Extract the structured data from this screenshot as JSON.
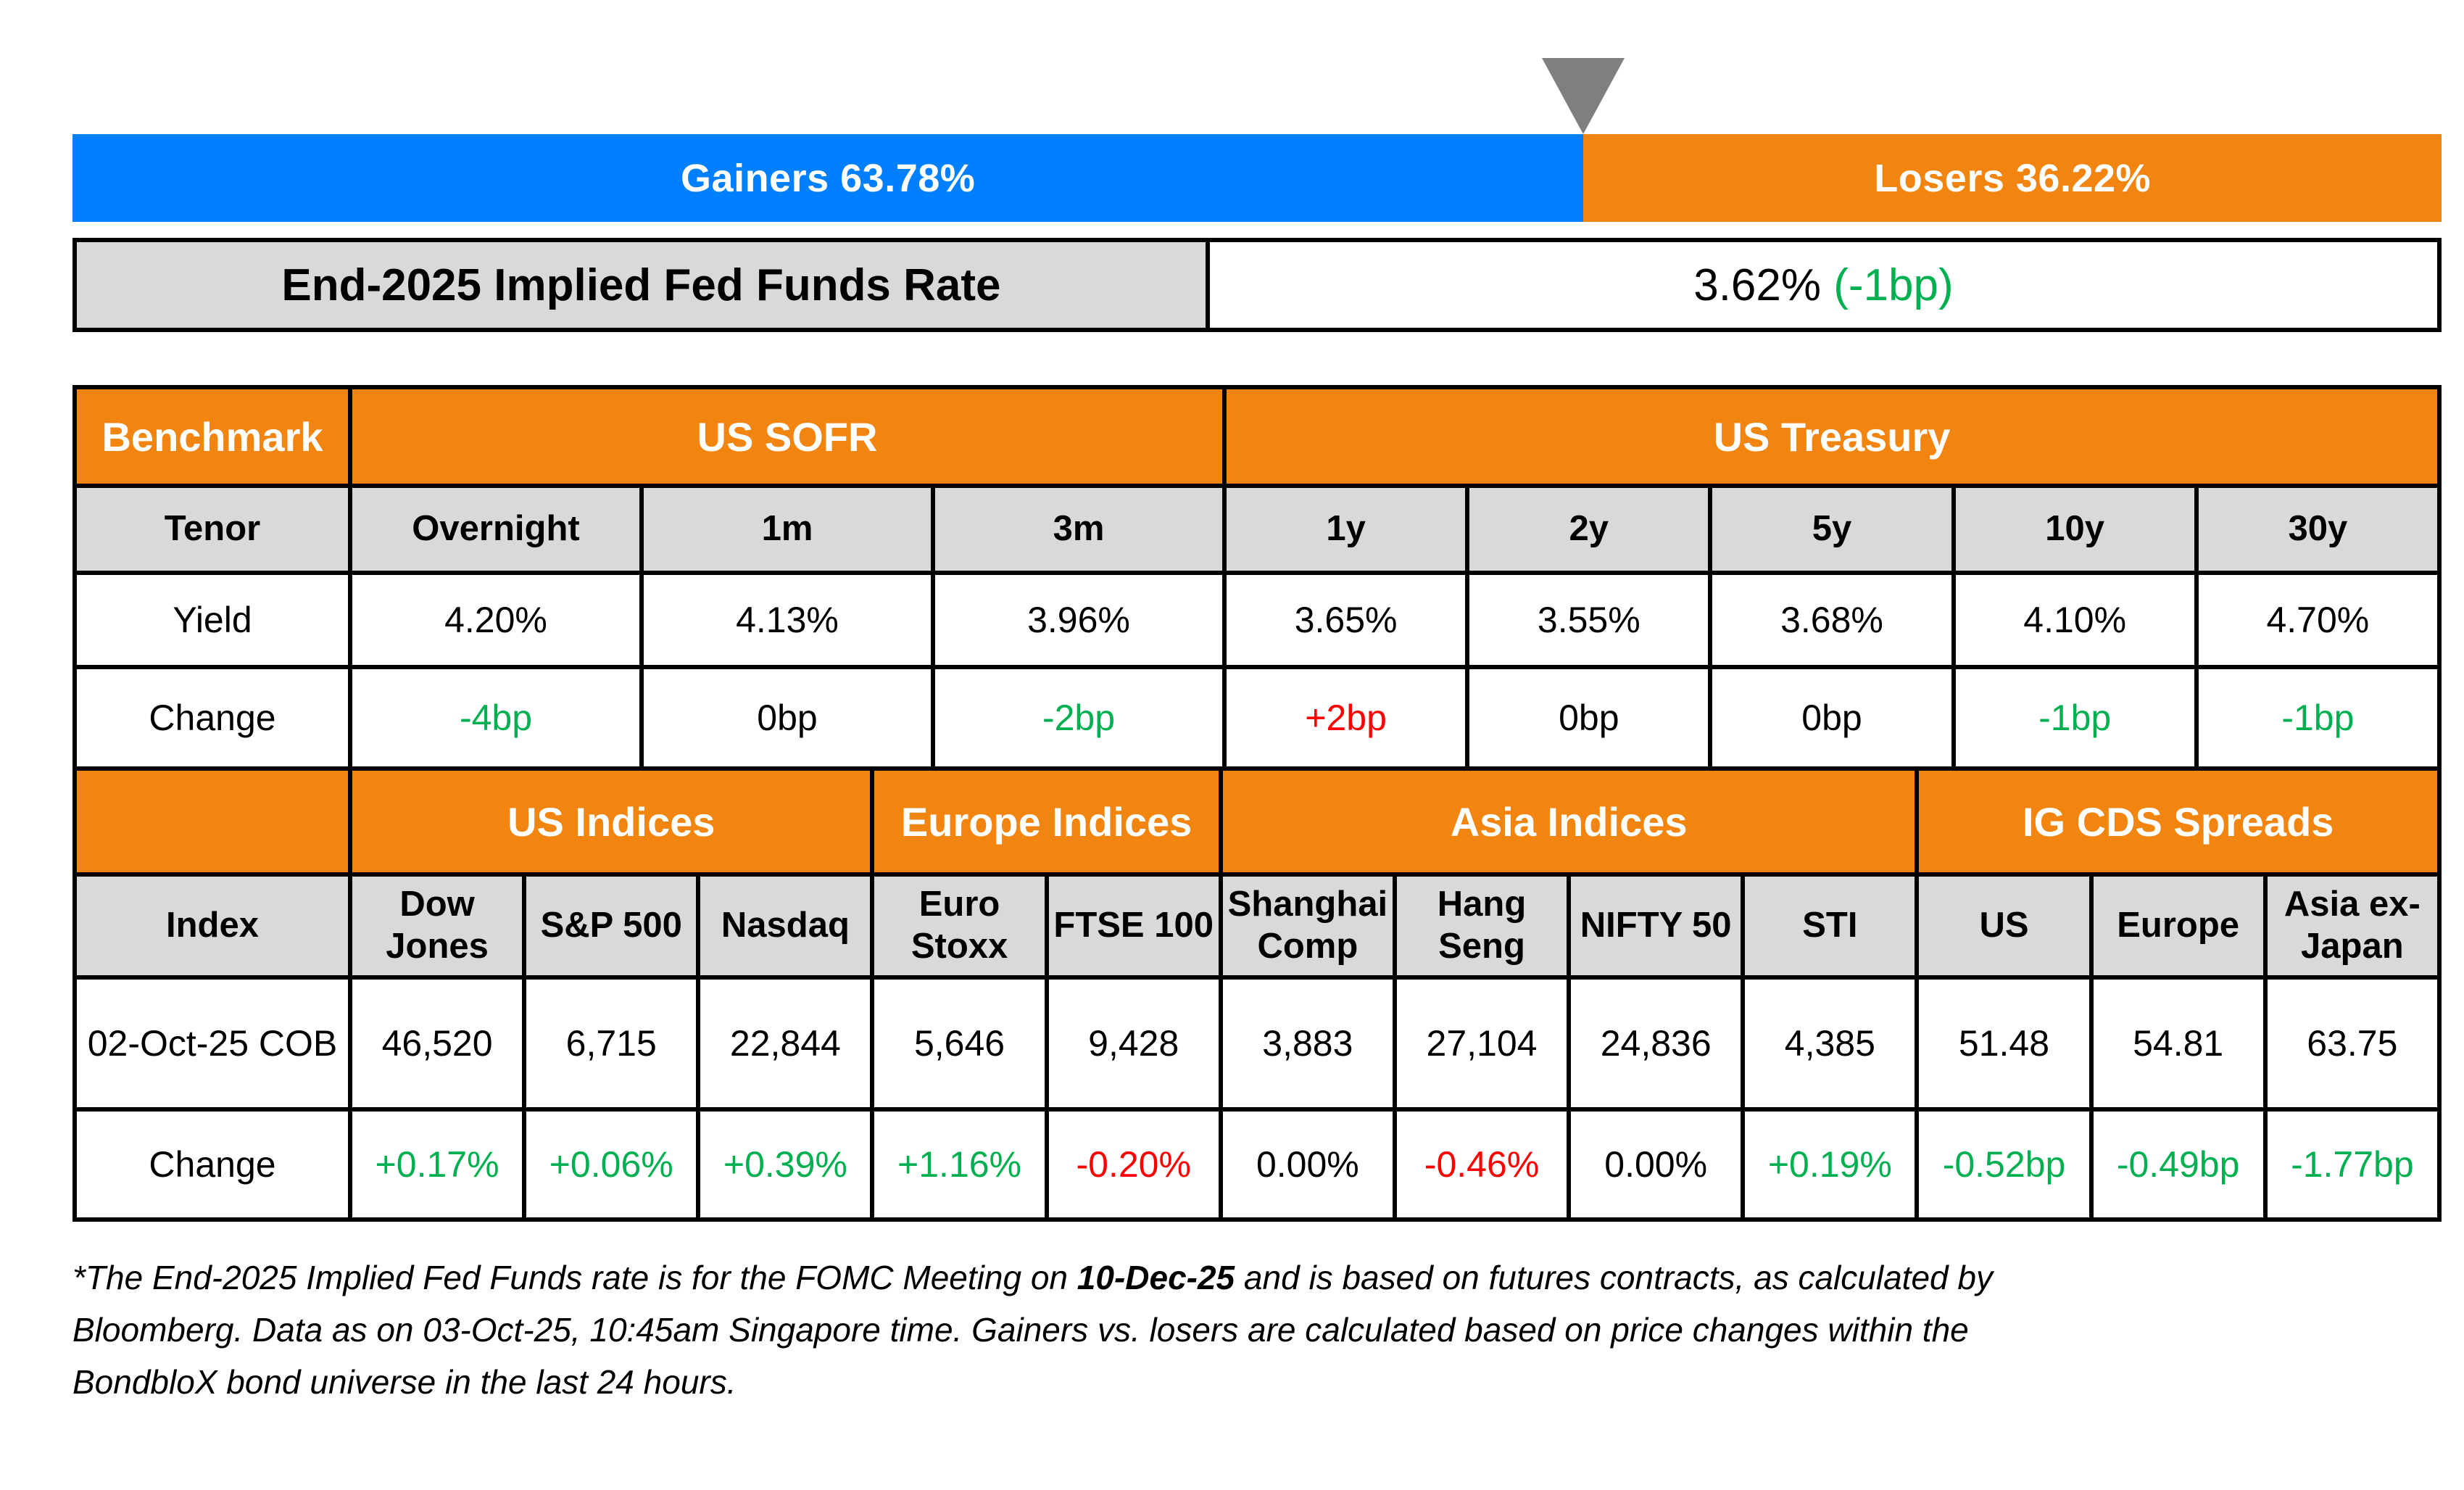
{
  "colors": {
    "gainers_blue": "#0080FE",
    "losers_orange": "#F28510",
    "header_orange": "#F28510",
    "cell_gray": "#D9D9D9",
    "marker_gray": "#7F7F7F",
    "positive_green": "#00B050",
    "negative_red": "#FF0000"
  },
  "gainers_losers_bar": {
    "type": "stacked-bar",
    "gainers_label": "Gainers 63.78%",
    "gainers_pct": 63.78,
    "losers_label": "Losers 36.22%",
    "losers_pct": 36.22
  },
  "fed_funds_row": {
    "label": "End-2025 Implied Fed Funds Rate",
    "value": "3.62%",
    "change": "(-1bp)",
    "change_color": "#00B050"
  },
  "benchmark_table": {
    "corner_label": "Benchmark",
    "groups": [
      {
        "label": "US SOFR",
        "span": 3
      },
      {
        "label": "US Treasury",
        "span": 5
      }
    ],
    "tenor_row": {
      "label": "Tenor",
      "cells": [
        "Overnight",
        "1m",
        "3m",
        "1y",
        "2y",
        "5y",
        "10y",
        "30y"
      ]
    },
    "yield_row": {
      "label": "Yield",
      "cells": [
        "4.20%",
        "4.13%",
        "3.96%",
        "3.65%",
        "3.55%",
        "3.68%",
        "4.10%",
        "4.70%"
      ]
    },
    "change_row": {
      "label": "Change",
      "cells": [
        {
          "text": "-4bp",
          "color": "#00B050"
        },
        {
          "text": "0bp",
          "color": "#000000"
        },
        {
          "text": "-2bp",
          "color": "#00B050"
        },
        {
          "text": "+2bp",
          "color": "#FF0000"
        },
        {
          "text": "0bp",
          "color": "#000000"
        },
        {
          "text": "0bp",
          "color": "#000000"
        },
        {
          "text": "-1bp",
          "color": "#00B050"
        },
        {
          "text": "-1bp",
          "color": "#00B050"
        }
      ]
    }
  },
  "indices_table": {
    "corner_label": "",
    "groups": [
      {
        "label": "US Indices",
        "span": 3
      },
      {
        "label": "Europe Indices",
        "span": 2
      },
      {
        "label": "Asia Indices",
        "span": 4
      },
      {
        "label": "IG CDS Spreads",
        "span": 3
      }
    ],
    "index_row": {
      "label": "Index",
      "cells": [
        "Dow Jones",
        "S&P 500",
        "Nasdaq",
        "Euro Stoxx",
        "FTSE 100",
        "Shanghai Comp",
        "Hang Seng",
        "NIFTY 50",
        "STI",
        "US",
        "Europe",
        "Asia ex-Japan"
      ]
    },
    "value_row": {
      "label": "02-Oct-25 COB",
      "cells": [
        "46,520",
        "6,715",
        "22,844",
        "5,646",
        "9,428",
        "3,883",
        "27,104",
        "24,836",
        "4,385",
        "51.48",
        "54.81",
        "63.75"
      ]
    },
    "change_row": {
      "label": "Change",
      "cells": [
        {
          "text": "+0.17%",
          "color": "#00B050"
        },
        {
          "text": "+0.06%",
          "color": "#00B050"
        },
        {
          "text": "+0.39%",
          "color": "#00B050"
        },
        {
          "text": "+1.16%",
          "color": "#00B050"
        },
        {
          "text": "-0.20%",
          "color": "#FF0000"
        },
        {
          "text": "0.00%",
          "color": "#000000"
        },
        {
          "text": "-0.46%",
          "color": "#FF0000"
        },
        {
          "text": "0.00%",
          "color": "#000000"
        },
        {
          "text": "+0.19%",
          "color": "#00B050"
        },
        {
          "text": "-0.52bp",
          "color": "#00B050"
        },
        {
          "text": "-0.49bp",
          "color": "#00B050"
        },
        {
          "text": "-1.77bp",
          "color": "#00B050"
        }
      ]
    }
  },
  "footnote": {
    "line1_pre": "*The End-2025 Implied Fed Funds rate is for the FOMC Meeting on ",
    "line1_bold": "10-Dec-25",
    "line1_post": " and is based on futures contracts, as calculated by",
    "line2": "Bloomberg. Data as on 03-Oct-25, 10:45am Singapore time. Gainers vs. losers are calculated based on price changes within the",
    "line3": "BondbloX bond universe in the last 24 hours."
  }
}
